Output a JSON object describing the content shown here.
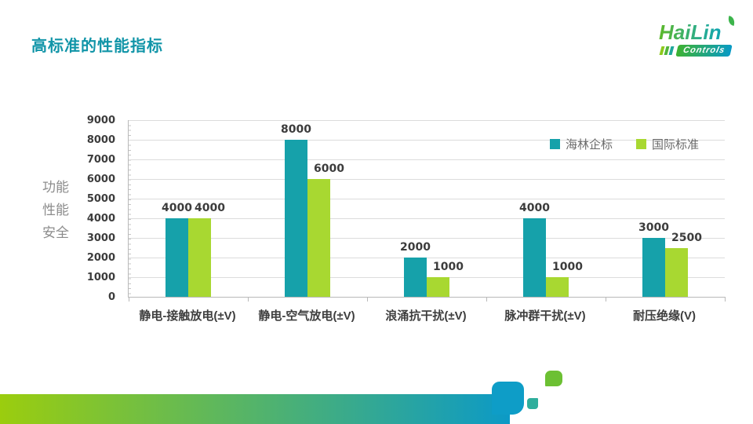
{
  "slide": {
    "title": "高标准的性能指标"
  },
  "logo": {
    "brand": "HaiLin",
    "subtitle": "Controls"
  },
  "side_label": {
    "lines": [
      "功能",
      "性能",
      "安全"
    ]
  },
  "chart_data": {
    "type": "bar",
    "categories": [
      "静电-接触放电(±V)",
      "静电-空气放电(±V)",
      "浪涌抗干扰(±V)",
      "脉冲群干扰(±V)",
      "耐压绝缘(V)"
    ],
    "series": [
      {
        "name": "海林企标",
        "color": "#16A1AA",
        "values": [
          4000,
          8000,
          2000,
          4000,
          3000
        ]
      },
      {
        "name": "国际标准",
        "color": "#A8D831",
        "values": [
          4000,
          6000,
          1000,
          1000,
          2500
        ]
      }
    ],
    "ylim": [
      0,
      9000
    ],
    "ytick_interval": 1000,
    "grid": true,
    "legend_position": "top-right",
    "value_labels": true
  },
  "colors": {
    "title": "#1195A8",
    "series_teal": "#16A1AA",
    "series_green": "#A8D831",
    "bottom_gradient_start": "#9BCD0E",
    "bottom_gradient_end": "#0C9AC6",
    "accent_square_blue": "#0E9DC7",
    "accent_square_green": "#6CC033",
    "accent_square_teal": "#2FAE9C"
  }
}
